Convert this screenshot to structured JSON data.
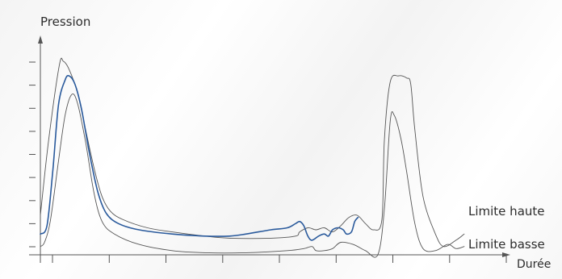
{
  "chart_data": {
    "type": "line",
    "title": "",
    "xlabel": "Durée",
    "ylabel": "Pression",
    "ticks": {
      "x_count": 9,
      "y_count": 8,
      "labels_shown": false
    },
    "grid": false,
    "colors": {
      "axis": "#555555",
      "envelope": "#555555",
      "measure": "#2a5a9c"
    },
    "series": [
      {
        "name": "Limite haute",
        "role": "envelope",
        "points": [
          [
            0.0,
            0.19
          ],
          [
            0.1,
            0.55
          ],
          [
            0.23,
            0.91
          ],
          [
            0.28,
            0.93
          ],
          [
            0.35,
            0.89
          ],
          [
            0.45,
            0.78
          ],
          [
            0.55,
            0.6
          ],
          [
            0.65,
            0.42
          ],
          [
            0.75,
            0.28
          ],
          [
            0.85,
            0.21
          ],
          [
            1.0,
            0.17
          ],
          [
            1.3,
            0.13
          ],
          [
            1.6,
            0.11
          ],
          [
            2.0,
            0.09
          ],
          [
            2.3,
            0.08
          ],
          [
            2.8,
            0.08
          ],
          [
            3.1,
            0.09
          ],
          [
            3.15,
            0.11
          ],
          [
            3.25,
            0.13
          ],
          [
            3.35,
            0.12
          ],
          [
            3.45,
            0.13
          ],
          [
            3.55,
            0.11
          ],
          [
            3.65,
            0.14
          ],
          [
            3.75,
            0.18
          ],
          [
            3.85,
            0.19
          ],
          [
            3.95,
            0.15
          ],
          [
            4.05,
            0.12
          ],
          [
            4.15,
            0.17
          ],
          [
            4.18,
            0.55
          ],
          [
            4.25,
            0.83
          ],
          [
            4.35,
            0.86
          ],
          [
            4.45,
            0.85
          ],
          [
            4.5,
            0.82
          ],
          [
            4.55,
            0.6
          ],
          [
            4.65,
            0.28
          ],
          [
            4.8,
            0.1
          ],
          [
            4.9,
            0.04
          ],
          [
            5.05,
            0.07
          ],
          [
            5.15,
            0.1
          ]
        ]
      },
      {
        "name": "Limite basse",
        "role": "envelope",
        "points": [
          [
            0.0,
            0.04
          ],
          [
            0.05,
            0.06
          ],
          [
            0.12,
            0.16
          ],
          [
            0.22,
            0.45
          ],
          [
            0.3,
            0.67
          ],
          [
            0.38,
            0.77
          ],
          [
            0.45,
            0.73
          ],
          [
            0.55,
            0.54
          ],
          [
            0.65,
            0.3
          ],
          [
            0.75,
            0.16
          ],
          [
            0.9,
            0.1
          ],
          [
            1.2,
            0.05
          ],
          [
            1.6,
            0.02
          ],
          [
            2.0,
            0.01
          ],
          [
            2.5,
            0.01
          ],
          [
            3.0,
            0.02
          ],
          [
            3.2,
            0.03
          ],
          [
            3.3,
            0.04
          ],
          [
            3.35,
            0.02
          ],
          [
            3.45,
            0.02
          ],
          [
            3.55,
            0.03
          ],
          [
            3.65,
            0.06
          ],
          [
            3.8,
            0.05
          ],
          [
            3.95,
            0.02
          ],
          [
            4.1,
            0.0
          ],
          [
            4.18,
            0.22
          ],
          [
            4.25,
            0.64
          ],
          [
            4.3,
            0.67
          ],
          [
            4.38,
            0.56
          ],
          [
            4.45,
            0.4
          ],
          [
            4.55,
            0.15
          ],
          [
            4.65,
            0.03
          ],
          [
            4.8,
            0.02
          ],
          [
            4.95,
            0.05
          ],
          [
            5.05,
            0.03
          ],
          [
            5.15,
            0.04
          ]
        ]
      },
      {
        "name": "",
        "role": "measure",
        "points": [
          [
            0.0,
            0.1
          ],
          [
            0.08,
            0.14
          ],
          [
            0.15,
            0.4
          ],
          [
            0.22,
            0.72
          ],
          [
            0.3,
            0.84
          ],
          [
            0.35,
            0.86
          ],
          [
            0.42,
            0.82
          ],
          [
            0.5,
            0.7
          ],
          [
            0.6,
            0.48
          ],
          [
            0.7,
            0.3
          ],
          [
            0.8,
            0.2
          ],
          [
            0.95,
            0.15
          ],
          [
            1.2,
            0.12
          ],
          [
            1.6,
            0.1
          ],
          [
            2.0,
            0.09
          ],
          [
            2.3,
            0.09
          ],
          [
            2.5,
            0.1
          ],
          [
            2.8,
            0.12
          ],
          [
            3.0,
            0.13
          ],
          [
            3.1,
            0.15
          ],
          [
            3.15,
            0.16
          ],
          [
            3.2,
            0.14
          ],
          [
            3.25,
            0.09
          ],
          [
            3.3,
            0.07
          ],
          [
            3.38,
            0.09
          ],
          [
            3.45,
            0.1
          ],
          [
            3.5,
            0.09
          ],
          [
            3.55,
            0.12
          ],
          [
            3.62,
            0.13
          ],
          [
            3.68,
            0.12
          ],
          [
            3.72,
            0.1
          ],
          [
            3.78,
            0.11
          ],
          [
            3.82,
            0.16
          ],
          [
            3.86,
            0.18
          ]
        ]
      }
    ],
    "xlim": [
      0,
      5.2
    ],
    "ylim": [
      0,
      1
    ]
  }
}
